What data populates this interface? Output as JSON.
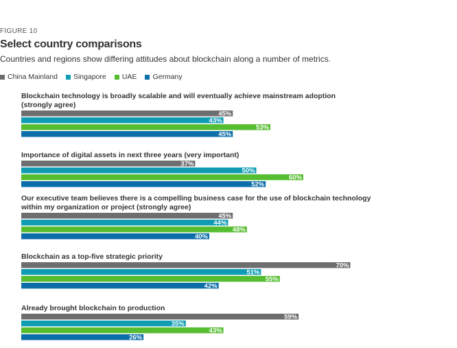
{
  "figure_label": "FIGURE 10",
  "chart_data": {
    "type": "bar",
    "orientation": "horizontal",
    "title": "Select country comparisons",
    "subtitle": "Countries and regions show differing attitudes about blockchain along a number of metrics.",
    "legend_position": "top-left",
    "grid": false,
    "xlim": [
      0,
      100
    ],
    "unit": "%",
    "series": [
      {
        "name": "China Mainland",
        "color": "#6d6e70"
      },
      {
        "name": "Singapore",
        "color": "#0f9cb3"
      },
      {
        "name": "UAE",
        "color": "#55bd2f"
      },
      {
        "name": "Germany",
        "color": "#0c6ea8"
      }
    ],
    "groups": [
      {
        "label_lines": [
          "Blockchain technology is broadly scalable and will eventually achieve mainstream adoption",
          "(strongly agree)"
        ],
        "values": [
          45,
          43,
          53,
          45
        ]
      },
      {
        "label_lines": [
          "Importance of digital assets in next three years (very important)"
        ],
        "values": [
          37,
          50,
          60,
          52
        ]
      },
      {
        "label_lines": [
          "Our executive team believes there is a compelling business case for the use of blockchain technology",
          "within my organization or project (strongly agree)"
        ],
        "values": [
          45,
          44,
          48,
          40
        ]
      },
      {
        "label_lines": [
          "Blockchain as a top-five strategic priority"
        ],
        "values": [
          70,
          51,
          55,
          42
        ]
      },
      {
        "label_lines": [
          "Already brought blockchain to production"
        ],
        "values": [
          59,
          35,
          43,
          26
        ]
      }
    ]
  }
}
